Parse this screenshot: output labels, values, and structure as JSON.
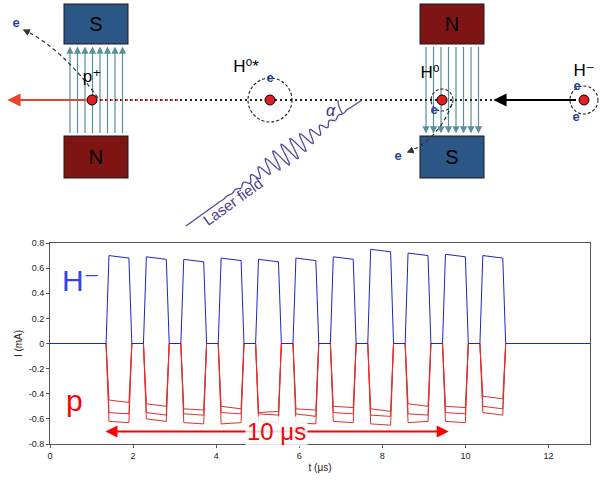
{
  "diagram": {
    "magnets": {
      "left": {
        "top": "S",
        "bottom": "N"
      },
      "right": {
        "top": "N",
        "bottom": "S"
      }
    },
    "particles": {
      "H_minus": "H⁻",
      "H_zero": "H⁰",
      "H_excited": "H⁰*",
      "proton": "p⁺"
    },
    "electron": "e",
    "angle": "α",
    "laser": "Laser field"
  },
  "chart_data": {
    "type": "line",
    "x": [
      0,
      1.35,
      1.42,
      1.9,
      1.97,
      2.25,
      2.32,
      2.8,
      2.87,
      3.15,
      3.22,
      3.7,
      3.77,
      4.05,
      4.12,
      4.6,
      4.67,
      4.95,
      5.02,
      5.5,
      5.57,
      5.85,
      5.92,
      6.4,
      6.47,
      6.75,
      6.82,
      7.3,
      7.37,
      7.65,
      7.72,
      8.2,
      8.27,
      8.55,
      8.62,
      9.1,
      9.17,
      9.45,
      9.52,
      10.0,
      10.07,
      10.35,
      10.42,
      10.9,
      10.97,
      13
    ],
    "series": [
      {
        "color": "#e03030",
        "values": [
          0,
          0,
          -0.55,
          -0.56,
          0,
          0,
          -0.55,
          -0.57,
          0,
          0,
          -0.56,
          -0.57,
          0,
          0,
          -0.55,
          -0.56,
          0,
          0,
          -0.56,
          -0.57,
          0,
          0,
          -0.56,
          -0.58,
          0,
          0,
          -0.55,
          -0.56,
          0,
          0,
          -0.57,
          -0.58,
          0,
          0,
          -0.56,
          -0.57,
          0,
          0,
          -0.55,
          -0.56,
          0,
          0,
          -0.5,
          -0.52,
          0,
          0
        ]
      },
      {
        "color": "#e03030",
        "values": [
          0,
          0,
          -0.62,
          -0.63,
          0,
          0,
          -0.6,
          -0.62,
          0,
          0,
          -0.63,
          -0.64,
          0,
          0,
          -0.64,
          -0.63,
          0,
          0,
          -0.62,
          -0.63,
          0,
          0,
          -0.63,
          -0.64,
          0,
          0,
          -0.62,
          -0.63,
          0,
          0,
          -0.64,
          -0.65,
          0,
          0,
          -0.63,
          -0.62,
          0,
          0,
          -0.62,
          -0.63,
          0,
          0,
          -0.55,
          -0.57,
          0,
          0
        ]
      },
      {
        "color": "#e03030",
        "values": [
          0,
          0,
          -0.45,
          -0.47,
          0,
          0,
          -0.48,
          -0.5,
          0,
          0,
          -0.52,
          -0.53,
          0,
          0,
          -0.5,
          -0.52,
          0,
          0,
          -0.55,
          -0.54,
          0,
          0,
          -0.52,
          -0.53,
          0,
          0,
          -0.5,
          -0.51,
          0,
          0,
          -0.52,
          -0.54,
          0,
          0,
          -0.48,
          -0.5,
          0,
          0,
          -0.5,
          -0.51,
          0,
          0,
          -0.42,
          -0.44,
          0,
          0
        ]
      },
      {
        "color": "#2222cc",
        "values": [
          0,
          0,
          0.7,
          0.68,
          0,
          0,
          0.69,
          0.67,
          0,
          0,
          0.67,
          0.65,
          0,
          0,
          0.68,
          0.66,
          0,
          0,
          0.67,
          0.65,
          0,
          0,
          0.68,
          0.66,
          0,
          0,
          0.69,
          0.67,
          0,
          0,
          0.75,
          0.73,
          0,
          0,
          0.72,
          0.7,
          0,
          0,
          0.71,
          0.69,
          0,
          0,
          0.7,
          0.68,
          0,
          0
        ]
      }
    ],
    "xlabel": "t (μs)",
    "ylabel": "I (mA)",
    "xlim": [
      0,
      13
    ],
    "xticks": [
      0,
      2,
      4,
      6,
      8,
      10,
      12
    ],
    "ylim": [
      -0.8,
      0.8
    ],
    "yticks": [
      -0.8,
      -0.6,
      -0.4,
      -0.2,
      0,
      0.2,
      0.4,
      0.6,
      0.8
    ],
    "grid": false,
    "annotations": [
      {
        "text": "H⁻",
        "x": 0.75,
        "y": 0.5,
        "color": "#3344ee"
      },
      {
        "text": "p",
        "x": 0.6,
        "y": -0.45,
        "color": "#ff0000"
      }
    ],
    "arrow": {
      "text": "10 μs",
      "x": [
        1.3,
        9.6
      ],
      "y": -0.7,
      "color": "#ff0000"
    }
  }
}
